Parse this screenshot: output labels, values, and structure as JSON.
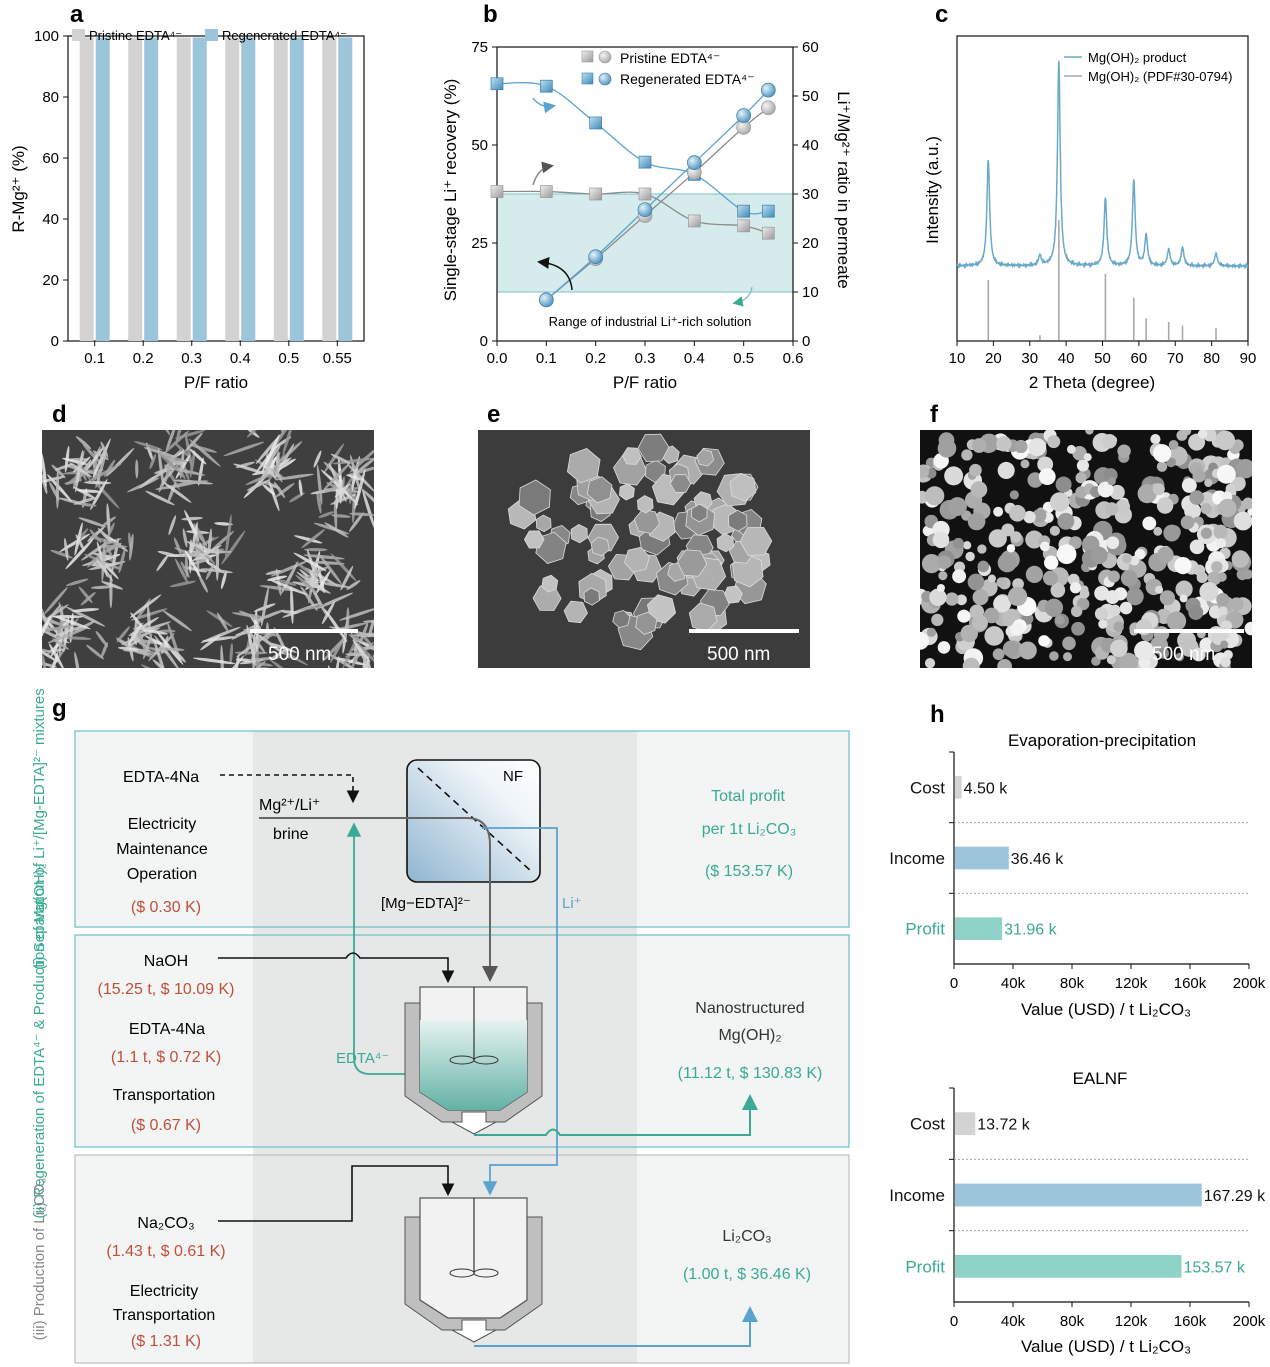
{
  "panel_labels": {
    "a": "a",
    "b": "b",
    "c": "c",
    "d": "d",
    "e": "e",
    "f": "f",
    "g": "g",
    "h": "h"
  },
  "colors": {
    "pristine": "#d3d3d3",
    "regenerated": "#9cc4da",
    "teal": "#3aaa95",
    "blue": "#5aa3cf",
    "line_blue": "#6aa9c9",
    "red": "#c0503c",
    "profit": "#8fd3c8",
    "shade": "#d6ecec"
  },
  "chart_data": [
    {
      "id": "a",
      "type": "bar",
      "title": "",
      "xlabel": "P/F ratio",
      "ylabel": "R-Mg²⁺ (%)",
      "categories": [
        "0.1",
        "0.2",
        "0.3",
        "0.4",
        "0.5",
        "0.55"
      ],
      "ylim": [
        0,
        100
      ],
      "yticks": [
        "0",
        "20",
        "40",
        "60",
        "80",
        "100"
      ],
      "legend": [
        "Pristine EDTA⁴⁻",
        "Regenerated EDTA⁴⁻"
      ],
      "series": [
        {
          "name": "Pristine EDTA⁴⁻",
          "values": [
            99.5,
            99.5,
            99.5,
            99.5,
            99.5,
            99.5
          ]
        },
        {
          "name": "Regenerated EDTA⁴⁻",
          "values": [
            99.5,
            99.5,
            99.5,
            99.5,
            99.5,
            99.5
          ]
        }
      ]
    },
    {
      "id": "b",
      "type": "line",
      "xlabel": "P/F ratio",
      "ylabel_left": "Single-stage Li⁺ recovery (%)",
      "ylabel_right": "Li⁺/Mg²⁺ ratio in permeate",
      "xlim": [
        0,
        0.6
      ],
      "ylim_left": [
        0,
        75
      ],
      "ylim_right": [
        0,
        60
      ],
      "xticks": [
        "0.0",
        "0.1",
        "0.2",
        "0.3",
        "0.4",
        "0.5",
        "0.6"
      ],
      "yticks_left": [
        "0",
        "25",
        "50",
        "75"
      ],
      "yticks_right": [
        "0",
        "10",
        "20",
        "30",
        "40",
        "50",
        "60"
      ],
      "legend": [
        "Pristine EDTA⁴⁻",
        "Regenerated EDTA⁴⁻"
      ],
      "shade_range_right": [
        10,
        30
      ],
      "shade_label": "Range of industrial Li⁺-rich solution",
      "recovery_series": [
        {
          "name": "Pristine EDTA⁴⁻",
          "x": [
            0.1,
            0.2,
            0.3,
            0.4,
            0.5,
            0.55
          ],
          "values": [
            10.5,
            21,
            32,
            43,
            54.5,
            59.5
          ]
        },
        {
          "name": "Regenerated EDTA⁴⁻",
          "x": [
            0.1,
            0.2,
            0.3,
            0.4,
            0.5,
            0.55
          ],
          "values": [
            10.5,
            21.5,
            33.5,
            45.5,
            57.5,
            64
          ]
        }
      ],
      "ratio_series": [
        {
          "name": "Pristine EDTA⁴⁻",
          "x": [
            0,
            0.1,
            0.2,
            0.3,
            0.4,
            0.5,
            0.55
          ],
          "values": [
            30.5,
            30.5,
            30,
            30,
            24.5,
            23.5,
            22
          ]
        },
        {
          "name": "Regenerated EDTA⁴⁻",
          "x": [
            0,
            0.1,
            0.2,
            0.3,
            0.4,
            0.5,
            0.55
          ],
          "values": [
            52.5,
            52,
            44.5,
            36.5,
            34,
            26.5,
            26.5
          ]
        }
      ]
    },
    {
      "id": "c",
      "type": "line",
      "xlabel": "2 Theta (degree)",
      "ylabel": "Intensity (a.u.)",
      "xlim": [
        10,
        90
      ],
      "xticks": [
        "10",
        "20",
        "30",
        "40",
        "50",
        "60",
        "70",
        "80",
        "90"
      ],
      "legend": [
        "Mg(OH)₂ product",
        "Mg(OH)₂ (PDF#30-0794)"
      ],
      "peaks": [
        {
          "x": 18.6,
          "product": 0.52,
          "reference": 0.5
        },
        {
          "x": 32.8,
          "product": 0.05,
          "reference": 0.04
        },
        {
          "x": 38.0,
          "product": 1.0,
          "reference": 1.0
        },
        {
          "x": 50.8,
          "product": 0.33,
          "reference": 0.55
        },
        {
          "x": 58.6,
          "product": 0.42,
          "reference": 0.35
        },
        {
          "x": 62.0,
          "product": 0.15,
          "reference": 0.18
        },
        {
          "x": 68.2,
          "product": 0.08,
          "reference": 0.15
        },
        {
          "x": 72.0,
          "product": 0.09,
          "reference": 0.12
        },
        {
          "x": 81.2,
          "product": 0.06,
          "reference": 0.1
        }
      ]
    },
    {
      "id": "h1",
      "type": "bar",
      "orientation": "horizontal",
      "title": "Evaporation-precipitation",
      "xlabel": "Value (USD) / t Li₂CO₃",
      "categories": [
        "Cost",
        "Income",
        "Profit"
      ],
      "values": [
        4.5,
        36.46,
        31.96
      ],
      "value_labels": [
        "4.50 k",
        "36.46 k",
        "31.96 k"
      ],
      "xlim": [
        0,
        200
      ],
      "xticks": [
        "0",
        "40k",
        "80k",
        "120k",
        "160k",
        "200k"
      ]
    },
    {
      "id": "h2",
      "type": "bar",
      "orientation": "horizontal",
      "title": "EALNF",
      "xlabel": "Value (USD) / t Li₂CO₃",
      "categories": [
        "Cost",
        "Income",
        "Profit"
      ],
      "values": [
        13.72,
        167.29,
        153.57
      ],
      "value_labels": [
        "13.72 k",
        "167.29 k",
        "153.57 k"
      ],
      "xlim": [
        0,
        200
      ],
      "xticks": [
        "0",
        "40k",
        "80k",
        "120k",
        "160k",
        "200k"
      ]
    }
  ],
  "sem": {
    "d": {
      "scale": "500 nm"
    },
    "e": {
      "scale": "500 nm"
    },
    "f": {
      "scale": "500 nm"
    }
  },
  "flow": {
    "stage1_label": "(i) Separation of Li⁺/[Mg-EDTA]²⁻ mixtures",
    "stage2_label": "(ii) Regeneration of EDTA⁴⁻ & Production of Mg(OH)₂",
    "stage3_label": "(iii) Production of Li₂CO₃",
    "edta_input": "EDTA-4Na",
    "brine_line1": "Mg²⁺/Li⁺",
    "brine_line2": "brine",
    "nf": "NF",
    "mg_edta": "[Mg−EDTA]²⁻",
    "li": "Li⁺",
    "edta_out": "EDTA⁴⁻",
    "s1_costs": [
      "Electricity",
      "Maintenance",
      "Operation"
    ],
    "s1_cost_value": "($ 0.30 K)",
    "s1_profit_title": "Total profit",
    "s1_profit_sub": "per 1t Li₂CO₃",
    "s1_profit_value": "($ 153.57 K)",
    "s2_naoh": "NaOH",
    "s2_naoh_value": "(15.25 t, $ 10.09 K)",
    "s2_edta": "EDTA-4Na",
    "s2_edta_value": "(1.1 t, $ 0.72 K)",
    "s2_transport": "Transportation",
    "s2_transport_value": "($ 0.67 K)",
    "s2_product": "Nanostructured",
    "s2_product2": "Mg(OH)₂",
    "s2_product_value": "(11.12 t, $ 130.83 K)",
    "s3_na2co3": "Na₂CO₃",
    "s3_na2co3_value": "(1.43 t, $ 0.61 K)",
    "s3_costs": [
      "Electricity",
      "Transportation"
    ],
    "s3_cost_value": "($ 1.31 K)",
    "s3_product": "Li₂CO₃",
    "s3_product_value": "(1.00 t, $ 36.46 K)"
  }
}
